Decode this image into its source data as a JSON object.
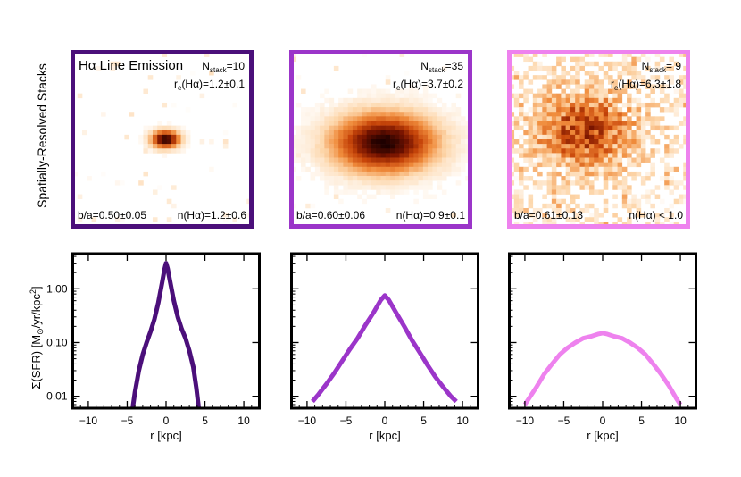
{
  "figure": {
    "row_label_top": "Spatially-Resolved Stacks",
    "ylabel_main": "Σ(SFR) [M",
    "ylabel_sun": "⊙",
    "ylabel_tail": "/yr/kpc",
    "ylabel_sup": "2",
    "ylabel_close": "]"
  },
  "colors": {
    "panel1": "#4b0f7a",
    "panel2": "#9b35c9",
    "panel3": "#ee82ee"
  },
  "panels": [
    {
      "title": "Hα Line Emission",
      "n_pre": "N",
      "n_sub": "stack",
      "n_val": "=10",
      "re_pre": "r",
      "re_sub": "e",
      "re_val": "(Hα)=1.2±0.1",
      "ba": "b/a=0.50±0.05",
      "nsersic": "n(Hα)=1.2±0.6",
      "image_description": "compact dark core"
    },
    {
      "title": "",
      "n_pre": "N",
      "n_sub": "stack",
      "n_val": "=35",
      "re_pre": "r",
      "re_sub": "e",
      "re_val": "(Hα)=3.7±0.2",
      "ba": "b/a=0.60±0.06",
      "nsersic": "n(Hα)=0.9±0.1"
    },
    {
      "title": "",
      "n_pre": "N",
      "n_sub": "stack",
      "n_val": "= 9",
      "re_pre": "r",
      "re_sub": "e",
      "re_val": "(Hα)=6.3±1.8",
      "ba": "b/a=0.61±0.13",
      "nsersic": "n(Hα) < 1.0"
    }
  ],
  "chart_data": [
    {
      "type": "line",
      "xlabel": "r [kpc]",
      "ylabel": "Σ(SFR) [M⊙/yr/kpc²]",
      "yscale": "log",
      "xlim": [
        -12,
        12
      ],
      "ylim": [
        0.006,
        4.5
      ],
      "xticks": [
        "−10",
        "−5",
        "0",
        "5",
        "10"
      ],
      "xtick_values": [
        -10,
        -5,
        0,
        5,
        10
      ],
      "yticks": [
        "1.00",
        "0.10",
        "0.01"
      ],
      "ytick_values": [
        1.0,
        0.1,
        0.01
      ],
      "series": [
        {
          "name": "N_stack=10",
          "x": [
            -4.3,
            -4.0,
            -3.5,
            -3.0,
            -2.5,
            -2.0,
            -1.5,
            -1.0,
            -0.5,
            -0.2,
            0,
            0.2,
            0.5,
            1.0,
            1.5,
            2.0,
            2.5,
            3.0,
            3.5,
            3.9,
            4.2
          ],
          "y": [
            0.006,
            0.012,
            0.03,
            0.06,
            0.1,
            0.16,
            0.27,
            0.55,
            1.3,
            2.3,
            3.0,
            2.4,
            1.4,
            0.6,
            0.3,
            0.18,
            0.12,
            0.07,
            0.035,
            0.014,
            0.006
          ]
        }
      ]
    },
    {
      "type": "line",
      "xlabel": "r [kpc]",
      "ylabel": "",
      "yscale": "log",
      "xlim": [
        -12,
        12
      ],
      "ylim": [
        0.006,
        4.5
      ],
      "xticks": [
        "−10",
        "−5",
        "0",
        "5",
        "10"
      ],
      "xtick_values": [
        -10,
        -5,
        0,
        5,
        10
      ],
      "yticks": [],
      "ytick_values": [
        1.0,
        0.1,
        0.01
      ],
      "series": [
        {
          "name": "N_stack=35",
          "x": [
            -9.3,
            -8.5,
            -7.5,
            -6.5,
            -5.5,
            -4.5,
            -3.5,
            -2.5,
            -1.5,
            -0.5,
            0,
            0.5,
            1.5,
            2.5,
            3.5,
            4.5,
            5.5,
            6.5,
            7.5,
            8.5,
            9.2
          ],
          "y": [
            0.008,
            0.011,
            0.017,
            0.027,
            0.045,
            0.075,
            0.12,
            0.21,
            0.35,
            0.62,
            0.75,
            0.62,
            0.35,
            0.2,
            0.11,
            0.065,
            0.038,
            0.023,
            0.015,
            0.01,
            0.008
          ]
        }
      ]
    },
    {
      "type": "line",
      "xlabel": "r [kpc]",
      "ylabel": "",
      "yscale": "log",
      "xlim": [
        -12,
        12
      ],
      "ylim": [
        0.006,
        4.5
      ],
      "xticks": [
        "−10",
        "−5",
        "0",
        "5",
        "10"
      ],
      "xtick_values": [
        -10,
        -5,
        0,
        5,
        10
      ],
      "yticks": [],
      "ytick_values": [
        1.0,
        0.1,
        0.01
      ],
      "series": [
        {
          "name": "N_stack=9",
          "x": [
            -10.0,
            -9.5,
            -8.5,
            -7.5,
            -6.5,
            -5.5,
            -4.5,
            -3.5,
            -2.5,
            -1.5,
            -0.5,
            0,
            0.5,
            1.5,
            2.5,
            3.5,
            4.5,
            5.5,
            6.5,
            7.5,
            8.5,
            9.5,
            10.0
          ],
          "y": [
            0.007,
            0.009,
            0.015,
            0.026,
            0.04,
            0.06,
            0.08,
            0.1,
            0.12,
            0.13,
            0.145,
            0.15,
            0.145,
            0.13,
            0.12,
            0.1,
            0.08,
            0.06,
            0.04,
            0.026,
            0.016,
            0.009,
            0.007
          ]
        }
      ]
    }
  ]
}
